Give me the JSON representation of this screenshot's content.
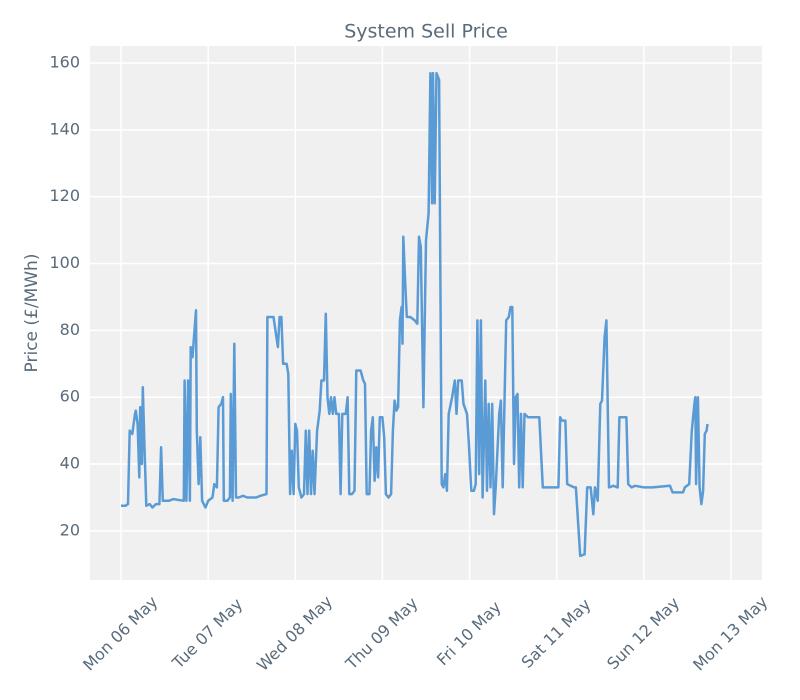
{
  "chart_data": {
    "type": "line",
    "title": "System Sell Price",
    "y_label": "Price (£/MWh)",
    "color": "#5b9bd5",
    "grid": true,
    "xlim": [
      -0.356,
      7.356
    ],
    "ylim": [
      5.3,
      165.1
    ],
    "xticks": [
      {
        "value": 0,
        "label": "Mon 06 May"
      },
      {
        "value": 1,
        "label": "Tue 07 May"
      },
      {
        "value": 2,
        "label": "Wed 08 May"
      },
      {
        "value": 3,
        "label": "Thu 09 May"
      },
      {
        "value": 4,
        "label": "Fri 10 May"
      },
      {
        "value": 5,
        "label": "Sat 11 May"
      },
      {
        "value": 6,
        "label": "Sun 12 May"
      },
      {
        "value": 7,
        "label": "Mon 13 May"
      }
    ],
    "yticks": [
      20,
      40,
      60,
      80,
      100,
      120,
      140,
      160
    ],
    "x": [
      0.0,
      0.05,
      0.08,
      0.1,
      0.13,
      0.16,
      0.17,
      0.19,
      0.21,
      0.22,
      0.24,
      0.25,
      0.27,
      0.29,
      0.33,
      0.36,
      0.4,
      0.44,
      0.46,
      0.48,
      0.5,
      0.55,
      0.6,
      0.72,
      0.73,
      0.75,
      0.77,
      0.79,
      0.8,
      0.82,
      0.86,
      0.87,
      0.89,
      0.91,
      0.93,
      0.97,
      1.0,
      1.05,
      1.07,
      1.1,
      1.12,
      1.15,
      1.17,
      1.18,
      1.22,
      1.25,
      1.26,
      1.28,
      1.3,
      1.32,
      1.35,
      1.4,
      1.45,
      1.55,
      1.6,
      1.67,
      1.68,
      1.75,
      1.8,
      1.82,
      1.84,
      1.86,
      1.9,
      1.92,
      1.94,
      1.96,
      1.98,
      2.0,
      2.02,
      2.04,
      2.07,
      2.1,
      2.12,
      2.14,
      2.16,
      2.18,
      2.2,
      2.22,
      2.25,
      2.28,
      2.3,
      2.33,
      2.35,
      2.37,
      2.39,
      2.41,
      2.43,
      2.45,
      2.47,
      2.5,
      2.52,
      2.54,
      2.58,
      2.6,
      2.62,
      2.65,
      2.68,
      2.7,
      2.75,
      2.78,
      2.8,
      2.82,
      2.85,
      2.87,
      2.89,
      2.91,
      2.93,
      2.95,
      2.97,
      3.0,
      3.02,
      3.04,
      3.07,
      3.1,
      3.12,
      3.14,
      3.16,
      3.18,
      3.2,
      3.22,
      3.23,
      3.24,
      3.26,
      3.28,
      3.32,
      3.37,
      3.4,
      3.42,
      3.44,
      3.47,
      3.5,
      3.53,
      3.55,
      3.57,
      3.58,
      3.6,
      3.62,
      3.65,
      3.68,
      3.7,
      3.72,
      3.74,
      3.76,
      3.8,
      3.83,
      3.85,
      3.87,
      3.91,
      3.93,
      3.97,
      3.99,
      4.02,
      4.05,
      4.07,
      4.09,
      4.11,
      4.13,
      4.15,
      4.18,
      4.2,
      4.22,
      4.24,
      4.26,
      4.28,
      4.3,
      4.34,
      4.36,
      4.38,
      4.42,
      4.45,
      4.47,
      4.49,
      4.51,
      4.53,
      4.55,
      4.57,
      4.59,
      4.61,
      4.63,
      4.67,
      4.8,
      4.84,
      4.95,
      5.02,
      5.04,
      5.06,
      5.1,
      5.12,
      5.2,
      5.22,
      5.27,
      5.32,
      5.35,
      5.39,
      5.42,
      5.44,
      5.47,
      5.5,
      5.52,
      5.55,
      5.57,
      5.6,
      5.65,
      5.7,
      5.72,
      5.8,
      5.82,
      5.86,
      5.9,
      6.0,
      6.1,
      6.3,
      6.33,
      6.45,
      6.47,
      6.52,
      6.55,
      6.58,
      6.59,
      6.6,
      6.62,
      6.64,
      6.66,
      6.68,
      6.7,
      6.72,
      6.73
    ],
    "values": [
      27.5,
      27.5,
      28,
      50,
      49,
      55,
      56,
      52,
      36,
      57,
      40,
      63,
      45,
      27.5,
      28,
      27,
      28,
      28,
      45,
      29,
      29,
      29,
      29.5,
      29,
      65,
      29,
      65,
      29,
      75,
      72,
      86,
      50,
      34,
      48,
      29,
      27,
      29,
      30,
      34,
      33,
      57,
      58,
      60,
      29,
      29,
      30,
      61,
      29,
      76,
      30,
      30,
      30.5,
      30,
      30,
      30.5,
      31,
      84,
      84,
      75,
      84,
      84,
      70,
      70,
      67,
      31,
      44,
      31,
      52,
      50,
      33,
      30,
      31,
      50,
      31,
      50,
      31,
      44,
      31,
      50,
      56,
      65,
      65,
      85,
      60,
      55,
      60,
      55,
      60,
      55,
      55,
      31,
      55,
      55,
      60,
      31,
      31,
      32,
      68,
      68,
      65,
      64,
      31,
      31,
      50,
      54,
      35,
      45,
      36,
      54,
      54,
      48,
      31,
      30,
      31,
      50,
      59,
      56,
      57,
      83,
      87,
      76,
      108,
      95,
      84,
      84,
      83,
      82,
      108,
      105,
      57,
      107,
      115,
      157,
      118,
      157,
      118,
      157,
      155,
      34,
      33,
      37,
      32,
      55,
      60,
      65,
      55,
      65,
      65,
      58,
      55,
      47,
      32,
      32,
      34,
      83,
      37,
      83,
      30,
      65,
      32,
      58,
      33,
      58,
      25,
      33,
      55,
      59,
      33,
      83,
      84,
      87,
      87,
      40,
      60,
      61,
      33,
      55,
      33,
      55,
      54,
      54,
      33,
      33,
      33,
      54,
      53,
      53,
      34,
      33,
      33,
      12.5,
      13,
      33,
      33,
      25,
      33,
      29,
      58,
      59,
      78,
      83,
      33,
      33.5,
      33,
      54,
      54,
      34,
      33,
      33.5,
      33,
      33,
      33.5,
      31.5,
      31.5,
      33,
      34,
      50,
      58,
      60,
      34,
      60,
      33,
      28,
      32,
      49,
      50,
      52
    ]
  }
}
